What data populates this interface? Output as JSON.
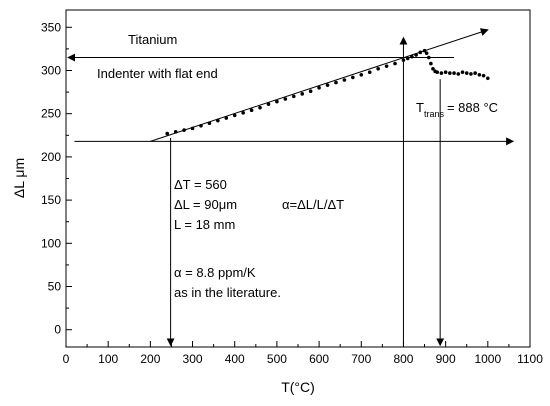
{
  "chart_data": {
    "type": "scatter",
    "title": "",
    "xlabel": "T(°C)",
    "ylabel": "ΔL μm",
    "xlim": [
      0,
      1100
    ],
    "ylim": [
      -20,
      370
    ],
    "xticks": [
      0,
      100,
      200,
      300,
      400,
      500,
      600,
      700,
      800,
      900,
      1000,
      1100
    ],
    "yticks": [
      0,
      50,
      100,
      150,
      200,
      250,
      300,
      350
    ],
    "grid": false,
    "series": [
      {
        "name": "",
        "x": [
          240,
          260,
          280,
          300,
          320,
          340,
          360,
          380,
          400,
          420,
          440,
          460,
          480,
          500,
          520,
          540,
          560,
          580,
          600,
          620,
          640,
          660,
          680,
          700,
          720,
          740,
          760,
          780,
          800,
          810,
          820,
          830,
          840,
          850,
          855,
          860,
          865,
          870,
          875,
          880,
          890,
          900,
          910,
          920,
          930,
          940,
          950,
          960,
          970,
          980,
          990,
          1000
        ],
        "y": [
          227,
          229,
          231,
          233,
          236,
          239,
          242,
          245,
          248,
          251,
          254,
          257,
          261,
          264,
          267,
          270,
          273,
          276,
          280,
          283,
          286,
          289,
          292,
          295,
          298,
          302,
          305,
          308,
          312,
          314,
          316,
          318,
          321,
          323,
          320,
          315,
          308,
          302,
          299,
          298,
          297,
          298,
          297,
          297,
          296,
          298,
          297,
          296,
          297,
          295,
          294,
          291
        ]
      }
    ],
    "fit_line": {
      "x": [
        200,
        1000
      ],
      "y": [
        218,
        347
      ]
    },
    "annotations": {
      "material": "Titanium",
      "setup": "Indenter with flat end",
      "t_trans_prefix": "T",
      "t_trans_sub": "trans",
      "t_trans_value": "= 888 °C",
      "delta_t": "ΔT = 560",
      "delta_l": "ΔL = 90μm",
      "alpha_formula": "α=ΔL/L/ΔT",
      "length": "L = 18 mm",
      "alpha_value": "α = 8.8 ppm/K",
      "literature": "as in the literature."
    }
  }
}
